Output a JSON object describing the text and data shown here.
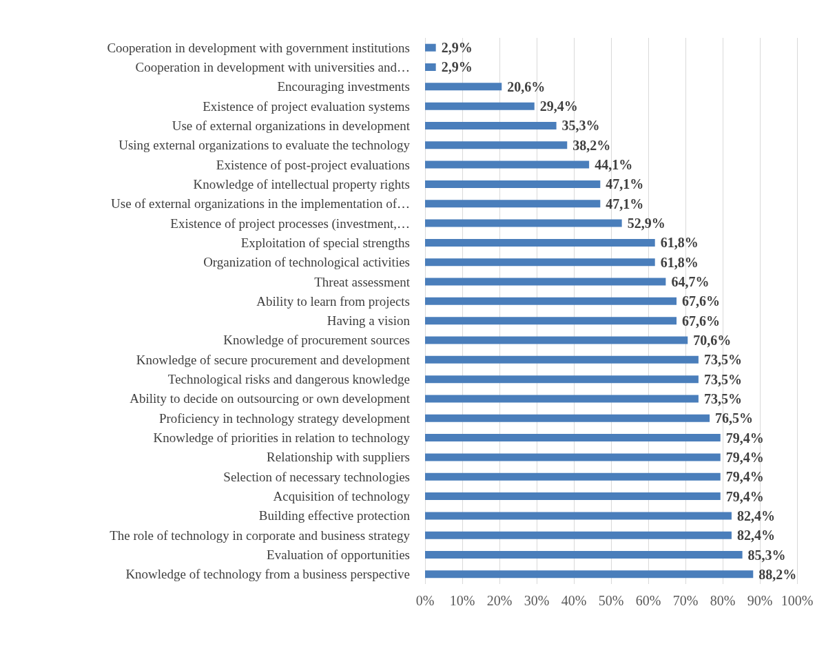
{
  "chart_data": {
    "type": "bar",
    "orientation": "horizontal",
    "categories": [
      "Cooperation in development with government institutions",
      "Cooperation in development with universities and…",
      "Encouraging investments",
      "Existence of project evaluation systems",
      "Use of external organizations in development",
      "Using external organizations to evaluate the technology",
      "Existence of post-project evaluations",
      "Knowledge of intellectual property rights",
      "Use of external organizations in the implementation of…",
      "Existence of project processes (investment,…",
      "Exploitation of special strengths",
      "Organization of technological activities",
      "Threat assessment",
      "Ability to learn from projects",
      "Having a vision",
      "Knowledge of procurement sources",
      "Knowledge of secure procurement and development",
      "Technological risks and dangerous knowledge",
      "Ability to decide on outsourcing or own development",
      "Proficiency in technology strategy development",
      "Knowledge of priorities in relation to technology",
      "Relationship with suppliers",
      "Selection of necessary technologies",
      "Acquisition of technology",
      "Building effective protection",
      "The role of technology in corporate and business strategy",
      "Evaluation of opportunities",
      "Knowledge of technology from a business perspective"
    ],
    "values": [
      2.9,
      2.9,
      20.6,
      29.4,
      35.3,
      38.2,
      44.1,
      47.1,
      47.1,
      52.9,
      61.8,
      61.8,
      64.7,
      67.6,
      67.6,
      70.6,
      73.5,
      73.5,
      73.5,
      76.5,
      79.4,
      79.4,
      79.4,
      79.4,
      82.4,
      82.4,
      85.3,
      88.2
    ],
    "value_labels": [
      "2,9%",
      "2,9%",
      "20,6%",
      "29,4%",
      "35,3%",
      "38,2%",
      "44,1%",
      "47,1%",
      "47,1%",
      "52,9%",
      "61,8%",
      "61,8%",
      "64,7%",
      "67,6%",
      "67,6%",
      "70,6%",
      "73,5%",
      "73,5%",
      "73,5%",
      "76,5%",
      "79,4%",
      "79,4%",
      "79,4%",
      "79,4%",
      "82,4%",
      "82,4%",
      "85,3%",
      "88,2%"
    ],
    "color": "#4a7ebb",
    "xlim": [
      0,
      100
    ],
    "xticks": [
      {
        "value": 0,
        "label": "0%"
      },
      {
        "value": 10,
        "label": "10%"
      },
      {
        "value": 20,
        "label": "20%"
      },
      {
        "value": 30,
        "label": "30%"
      },
      {
        "value": 40,
        "label": "40%"
      },
      {
        "value": 50,
        "label": "50%"
      },
      {
        "value": 60,
        "label": "60%"
      },
      {
        "value": 70,
        "label": "70%"
      },
      {
        "value": 80,
        "label": "80%"
      },
      {
        "value": 90,
        "label": "90%"
      },
      {
        "value": 100,
        "label": "100%"
      }
    ],
    "grid": "x"
  }
}
